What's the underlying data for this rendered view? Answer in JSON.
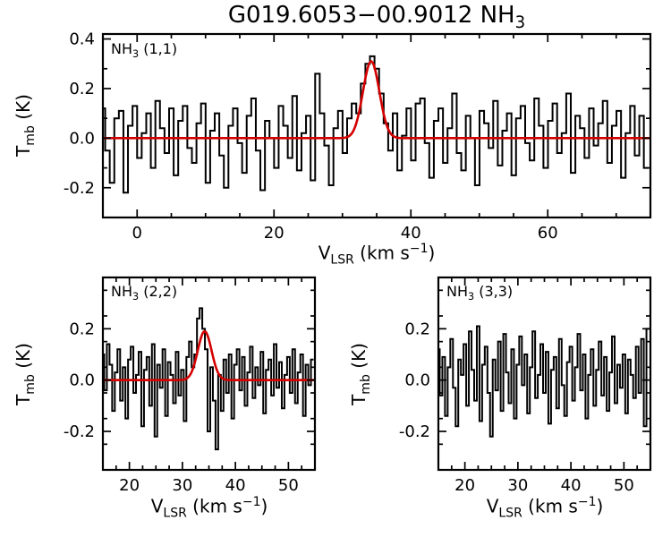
{
  "title_parts": [
    {
      "t": "G019.6053−00.9012 NH"
    },
    {
      "sub": "3"
    }
  ],
  "labels": {
    "y_parts": [
      {
        "t": "T"
      },
      {
        "sub": "mb"
      },
      {
        "t": " (K)"
      }
    ],
    "x_parts": [
      {
        "t": "V"
      },
      {
        "sub": "LSR"
      },
      {
        "t": " (km s"
      },
      {
        "sup": "−1"
      },
      {
        "t": ")"
      }
    ]
  },
  "colors": {
    "spectrum": "#000000",
    "fit": "#d40000",
    "background": "#ffffff",
    "axes": "#000000"
  },
  "chart_data": [
    {
      "id": "nh3-11",
      "type": "line",
      "title": "NH3 (1,1) spectrum",
      "label_parts": [
        {
          "t": "NH"
        },
        {
          "sub": "3"
        },
        {
          "t": " (1,1)"
        }
      ],
      "xlabel": "V_LSR (km s−1)",
      "ylabel": "T_mb (K)",
      "xlim": [
        -5,
        75
      ],
      "ylim": [
        -0.32,
        0.42
      ],
      "xticks": [
        0,
        20,
        40,
        60
      ],
      "xtick_labels": [
        "0",
        "20",
        "40",
        "60"
      ],
      "yticks": [
        -0.2,
        0.0,
        0.2,
        0.4
      ],
      "ytick_labels": [
        "-0.2",
        "0.0",
        "0.2",
        "0.4"
      ],
      "x_minor": 5,
      "y_minor": 0.1,
      "x_start": -5,
      "x_step": 0.667,
      "values": [
        0.12,
        -0.05,
        -0.18,
        0.08,
        0.11,
        -0.22,
        0.05,
        0.13,
        -0.08,
        0.02,
        0.1,
        -0.12,
        0.15,
        0.04,
        -0.06,
        0.12,
        -0.15,
        0.07,
        0.13,
        -0.04,
        -0.1,
        0.06,
        0.14,
        -0.18,
        0.03,
        0.1,
        -0.07,
        -0.2,
        0.05,
        0.12,
        -0.02,
        -0.14,
        0.09,
        0.16,
        -0.05,
        -0.21,
        0.07,
        0.0,
        -0.12,
        0.13,
        0.05,
        -0.08,
        0.17,
        -0.13,
        0.02,
        0.09,
        -0.17,
        0.26,
        0.1,
        -0.03,
        -0.19,
        0.04,
        0.11,
        -0.06,
        0.08,
        0.14,
        0.1,
        0.22,
        0.3,
        0.33,
        0.28,
        0.18,
        0.06,
        -0.05,
        0.1,
        -0.13,
        0.01,
        0.12,
        -0.09,
        0.14,
        0.16,
        -0.02,
        -0.16,
        0.07,
        0.12,
        -0.1,
        0.04,
        0.18,
        -0.06,
        -0.13,
        0.09,
        0.0,
        -0.19,
        0.11,
        0.06,
        -0.04,
        0.15,
        -0.11,
        0.03,
        0.1,
        -0.15,
        0.08,
        0.13,
        -0.02,
        -0.09,
        0.16,
        0.05,
        -0.12,
        0.07,
        0.14,
        -0.06,
        0.02,
        0.18,
        -0.14,
        0.09,
        0.04,
        -0.08,
        0.12,
        -0.03,
        0.06,
        0.15,
        -0.1,
        0.05,
        0.11,
        -0.16,
        0.02,
        0.13,
        -0.07,
        0.09,
        -0.12
      ],
      "fit": {
        "amplitude": 0.31,
        "center": 34.2,
        "sigma": 1.2
      }
    },
    {
      "id": "nh3-22",
      "type": "line",
      "title": "NH3 (2,2) spectrum",
      "label_parts": [
        {
          "t": "NH"
        },
        {
          "sub": "3"
        },
        {
          "t": " (2,2)"
        }
      ],
      "xlabel": "V_LSR (km s−1)",
      "ylabel": "T_mb (K)",
      "xlim": [
        15,
        55
      ],
      "ylim": [
        -0.35,
        0.4
      ],
      "xticks": [
        20,
        30,
        40,
        50
      ],
      "xtick_labels": [
        "20",
        "30",
        "40",
        "50"
      ],
      "yticks": [
        -0.2,
        0.0,
        0.2
      ],
      "ytick_labels": [
        "-0.2",
        "0.0",
        "0.2"
      ],
      "x_minor": 2.5,
      "y_minor": 0.1,
      "x_start": 15,
      "x_step": 0.5,
      "values": [
        0.1,
        -0.04,
        0.14,
        0.06,
        -0.12,
        0.03,
        0.12,
        -0.08,
        0.05,
        -0.15,
        0.08,
        0.13,
        -0.05,
        0.02,
        0.11,
        -0.18,
        0.04,
        0.09,
        -0.1,
        0.14,
        -0.22,
        0.06,
        -0.03,
        0.12,
        -0.14,
        0.07,
        0.02,
        -0.09,
        0.11,
        -0.06,
        0.04,
        -0.16,
        0.09,
        0.15,
        0.05,
        0.1,
        0.24,
        0.28,
        0.2,
        0.12,
        -0.2,
        0.05,
        -0.08,
        -0.27,
        0.02,
        -0.12,
        0.08,
        -0.05,
        0.1,
        -0.15,
        0.06,
        0.12,
        -0.04,
        0.09,
        -0.1,
        0.03,
        0.13,
        -0.07,
        0.05,
        -0.02,
        0.11,
        -0.13,
        0.04,
        0.08,
        -0.06,
        0.14,
        -0.03,
        0.07,
        -0.11,
        0.02,
        0.09,
        -0.05,
        0.12,
        -0.09,
        0.03,
        0.1,
        -0.14,
        0.06,
        -0.02,
        0.08
      ],
      "fit": {
        "amplitude": 0.19,
        "center": 34.2,
        "sigma": 1.3
      }
    },
    {
      "id": "nh3-33",
      "type": "line",
      "title": "NH3 (3,3) spectrum",
      "label_parts": [
        {
          "t": "NH"
        },
        {
          "sub": "3"
        },
        {
          "t": " (3,3)"
        }
      ],
      "xlabel": "V_LSR (km s−1)",
      "ylabel": "T_mb (K)",
      "xlim": [
        15,
        55
      ],
      "ylim": [
        -0.35,
        0.4
      ],
      "xticks": [
        20,
        30,
        40,
        50
      ],
      "xtick_labels": [
        "20",
        "30",
        "40",
        "50"
      ],
      "yticks": [
        -0.2,
        0.0,
        0.2
      ],
      "ytick_labels": [
        "-0.2",
        "0.0",
        "0.2"
      ],
      "x_minor": 2.5,
      "y_minor": 0.1,
      "x_start": 15,
      "x_step": 0.5,
      "values": [
        0.12,
        -0.06,
        0.09,
        -0.14,
        0.05,
        0.16,
        -0.03,
        -0.18,
        0.08,
        0.02,
        0.14,
        -0.1,
        0.19,
        0.04,
        -0.08,
        0.21,
        -0.16,
        0.06,
        0.13,
        -0.05,
        -0.22,
        0.08,
        -0.04,
        0.15,
        -0.12,
        0.18,
        0.03,
        -0.09,
        0.12,
        -0.15,
        0.06,
        0.17,
        -0.02,
        0.1,
        -0.13,
        0.05,
        0.19,
        -0.07,
        0.02,
        0.14,
        -0.05,
        0.11,
        -0.17,
        0.04,
        0.09,
        -0.11,
        0.16,
        -0.02,
        -0.14,
        0.07,
        0.13,
        -0.08,
        0.05,
        0.18,
        -0.04,
        0.1,
        -0.15,
        0.02,
        0.12,
        -0.1,
        0.04,
        0.15,
        -0.06,
        0.09,
        -0.12,
        0.03,
        0.17,
        -0.09,
        0.06,
        -0.03,
        0.1,
        -0.13,
        0.08,
        0.02,
        -0.07,
        0.13,
        -0.05,
        0.16,
        -0.18,
        0.2
      ],
      "fit": null
    }
  ]
}
